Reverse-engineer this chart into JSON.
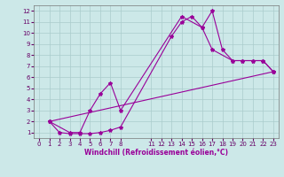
{
  "xlabel": "Windchill (Refroidissement éolien,°C)",
  "bg_color": "#cce8e8",
  "line_color": "#990099",
  "grid_color": "#aacccc",
  "xlim": [
    -0.5,
    23.5
  ],
  "ylim": [
    0.5,
    12.5
  ],
  "xtick_positions": [
    0,
    1,
    2,
    3,
    4,
    5,
    6,
    7,
    8,
    11,
    12,
    13,
    14,
    15,
    16,
    17,
    18,
    19,
    20,
    21,
    22,
    23
  ],
  "xtick_labels": [
    "0",
    "1",
    "2",
    "3",
    "4",
    "5",
    "6",
    "7",
    "8",
    "11",
    "12",
    "13",
    "14",
    "15",
    "16",
    "17",
    "18",
    "19",
    "20",
    "21",
    "22",
    "23"
  ],
  "ytick_positions": [
    1,
    2,
    3,
    4,
    5,
    6,
    7,
    8,
    9,
    10,
    11,
    12
  ],
  "ytick_labels": [
    "1",
    "2",
    "3",
    "4",
    "5",
    "6",
    "7",
    "8",
    "9",
    "10",
    "11",
    "12"
  ],
  "line1_x": [
    1,
    2,
    3,
    4,
    5,
    6,
    7,
    8,
    13,
    14,
    15,
    16,
    17,
    18,
    19,
    20,
    21,
    22,
    23
  ],
  "line1_y": [
    2.0,
    1.0,
    0.9,
    0.9,
    0.9,
    1.0,
    1.2,
    1.5,
    9.7,
    11.0,
    11.5,
    10.5,
    12.0,
    8.5,
    7.5,
    7.5,
    7.5,
    7.5,
    6.5
  ],
  "line2_x": [
    1,
    3,
    4,
    5,
    6,
    7,
    8,
    14,
    16,
    17,
    19,
    20,
    21,
    22,
    23
  ],
  "line2_y": [
    2.0,
    1.0,
    1.0,
    3.0,
    4.5,
    5.5,
    3.0,
    11.5,
    10.5,
    8.5,
    7.5,
    7.5,
    7.5,
    7.5,
    6.5
  ],
  "line3_x": [
    1,
    23
  ],
  "line3_y": [
    2.0,
    6.5
  ],
  "marker": "*",
  "markersize": 3,
  "linewidth": 0.8,
  "tick_fontsize": 5,
  "xlabel_fontsize": 5.5
}
